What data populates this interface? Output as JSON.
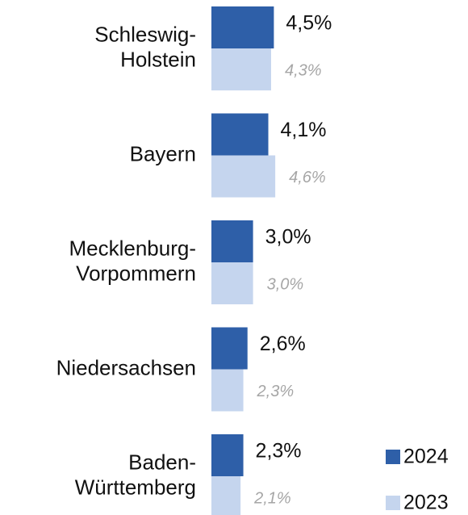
{
  "chart_data": {
    "type": "bar",
    "orientation": "horizontal",
    "categories": [
      [
        "Schleswig-",
        "Holstein"
      ],
      [
        "Bayern"
      ],
      [
        "Mecklenburg-",
        "Vorpommern"
      ],
      [
        "Niedersachsen"
      ],
      [
        "Baden-",
        "Württemberg"
      ]
    ],
    "series": [
      {
        "name": "2024",
        "color": "#2e5fa8",
        "values": [
          4.5,
          4.1,
          3.0,
          2.6,
          2.3
        ],
        "value_labels": [
          "4,5%",
          "4,1%",
          "3,0%",
          "2,6%",
          "2,3%"
        ]
      },
      {
        "name": "2023",
        "color": "#c5d5ee",
        "values": [
          4.3,
          4.6,
          3.0,
          2.3,
          2.1
        ],
        "value_labels": [
          "4,3%",
          "4,6%",
          "3,0%",
          "2,3%",
          "2,1%"
        ]
      }
    ],
    "legend": "bottom-right"
  }
}
